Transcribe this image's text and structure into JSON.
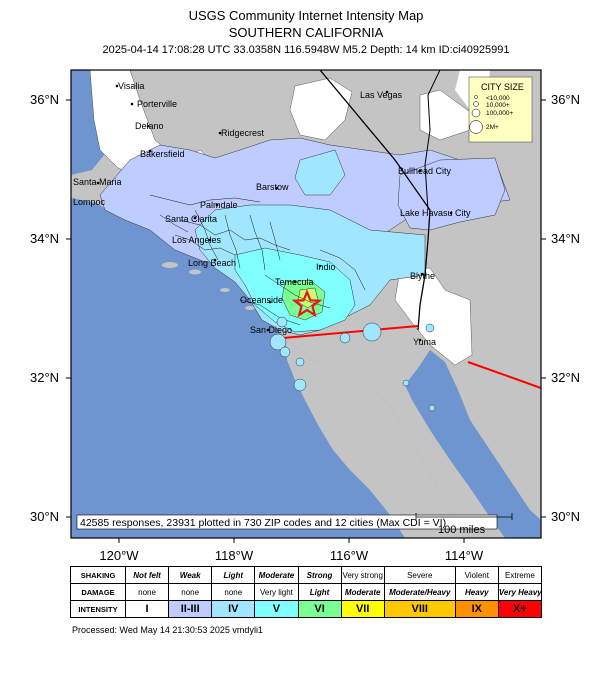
{
  "header": {
    "title": "USGS Community Internet Intensity Map",
    "region": "SOUTHERN CALIFORNIA",
    "event_info": "2025-04-14 17:08:28 UTC 33.0358N 116.5948W M5.2 Depth: 14 km ID:ci40925991"
  },
  "map": {
    "latitude_labels": [
      "36°N",
      "34°N",
      "32°N",
      "30°N"
    ],
    "longitude_labels": [
      "120°W",
      "118°W",
      "116°W",
      "114°W"
    ],
    "place_labels": {
      "visalia": "Visalia",
      "porterville": "Porterville",
      "delano": "Delano",
      "ridgecrest": "Ridgecrest",
      "bakersfield": "Bakersfield",
      "las_vegas": "Las Vegas",
      "bullhead_city": "Bullhead City",
      "barstow": "Barstow",
      "santa_maria": "Santa Maria",
      "lompoc": "Lompoc",
      "palmdale": "Palmdale",
      "santa_clarita": "Santa Clarita",
      "los_angeles": "Los Angeles",
      "lake_havasu_city": "Lake Havasu City",
      "long_beach": "Long Beach",
      "indio": "Indio",
      "temecula": "Temecula",
      "blythe": "Blythe",
      "oceanside": "Oceanside",
      "san_diego": "San Diego",
      "yuma": "Yuma"
    },
    "epicenter": {
      "symbol": "star-icon",
      "color": "#e8161b"
    },
    "response_summary": "42585 responses, 23931 plotted in 730 ZIP codes and 12 cities (Max CDI = VI)",
    "scale_bar": "100 miles",
    "city_size_legend": {
      "title": "CITY SIZE",
      "entries": [
        "<10,000",
        "10,000+",
        "100,000+",
        "2M+"
      ]
    },
    "colors": {
      "ocean": "#6e95cf",
      "land": "#c4c4c4",
      "fault_line": "#ff0000"
    }
  },
  "intensity_legend": {
    "row_headers": [
      "SHAKING",
      "DAMAGE",
      "INTENSITY"
    ],
    "shaking": [
      "Not felt",
      "Weak",
      "Light",
      "Moderate",
      "Strong",
      "Very strong",
      "Severe",
      "Violent",
      "Extreme"
    ],
    "damage": [
      "none",
      "none",
      "none",
      "Very light",
      "Light",
      "Moderate",
      "Moderate/Heavy",
      "Heavy",
      "Very Heavy"
    ],
    "intensity": [
      "I",
      "II-III",
      "IV",
      "V",
      "VI",
      "VII",
      "VIII",
      "IX",
      "X+"
    ],
    "colors": [
      "#ffffff",
      "#bfccff",
      "#a0e6ff",
      "#80ffff",
      "#7aff93",
      "#ffff00",
      "#ffc800",
      "#ff9100",
      "#ff0000"
    ]
  },
  "footer": {
    "processed": "Processed: Wed May 14 21:30:53 2025 vmdyli1"
  }
}
